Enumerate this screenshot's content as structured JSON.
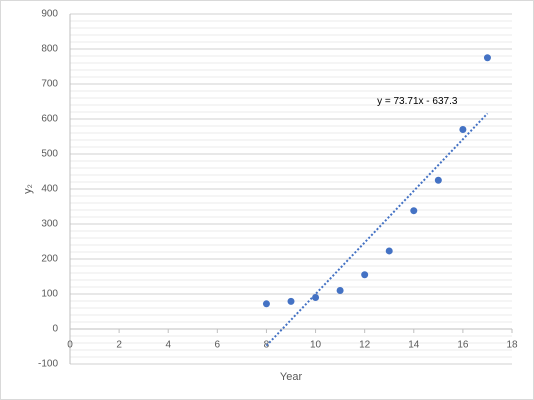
{
  "chart_data": {
    "type": "scatter",
    "x_label": "Year",
    "y_label": "y₂",
    "series": [
      {
        "name": "y₂",
        "color": "#4472c4",
        "x": [
          8,
          9,
          10,
          11,
          12,
          13,
          14,
          15,
          16,
          17
        ],
        "values": [
          72,
          79,
          90,
          110,
          155,
          223,
          338,
          425,
          570,
          775
        ]
      }
    ],
    "trendline": {
      "label": "y = 73.71x - 637.3",
      "slope": 73.71,
      "intercept": -637.3,
      "color": "#4472c4"
    },
    "xlim": [
      0,
      18
    ],
    "xticks": [
      0,
      2,
      4,
      6,
      8,
      10,
      12,
      14,
      16,
      18
    ],
    "ylim": [
      -100,
      900
    ],
    "yticks": [
      -100,
      0,
      100,
      200,
      300,
      400,
      500,
      600,
      700,
      800,
      900
    ],
    "grid": true,
    "y_minor_step": 20
  }
}
